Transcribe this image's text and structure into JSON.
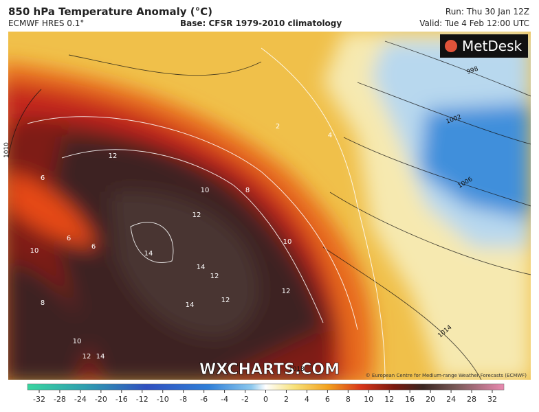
{
  "header": {
    "title": "850 hPa Temperature Anomaly (°C)",
    "model": "ECMWF HRES 0.1°",
    "base": "Base: CFSR 1979-2010 climatology",
    "run": "Run: Thu 30 Jan 12Z",
    "valid": "Valid: Tue 4 Feb 12:00 UTC"
  },
  "logo": "MetDesk",
  "watermark": "WXCHARTS.COM",
  "credit": "© European Centre for Medium-range Weather Forecasts (ECMWF)",
  "isobar_labels": [
    "998",
    "1002",
    "1006",
    "1010",
    "1014",
    "1018"
  ],
  "contour_labels": [
    "12",
    "10",
    "8",
    "12",
    "14",
    "14",
    "12",
    "14",
    "12",
    "10",
    "6",
    "6",
    "6",
    "8",
    "10",
    "12",
    "14",
    "12",
    "10",
    "2",
    "4"
  ],
  "colorbar": {
    "ticks": [
      -32,
      -28,
      -24,
      -20,
      -16,
      -12,
      -10,
      -8,
      -6,
      -4,
      -2,
      0,
      2,
      4,
      6,
      8,
      10,
      12,
      16,
      20,
      24,
      28,
      32
    ]
  }
}
